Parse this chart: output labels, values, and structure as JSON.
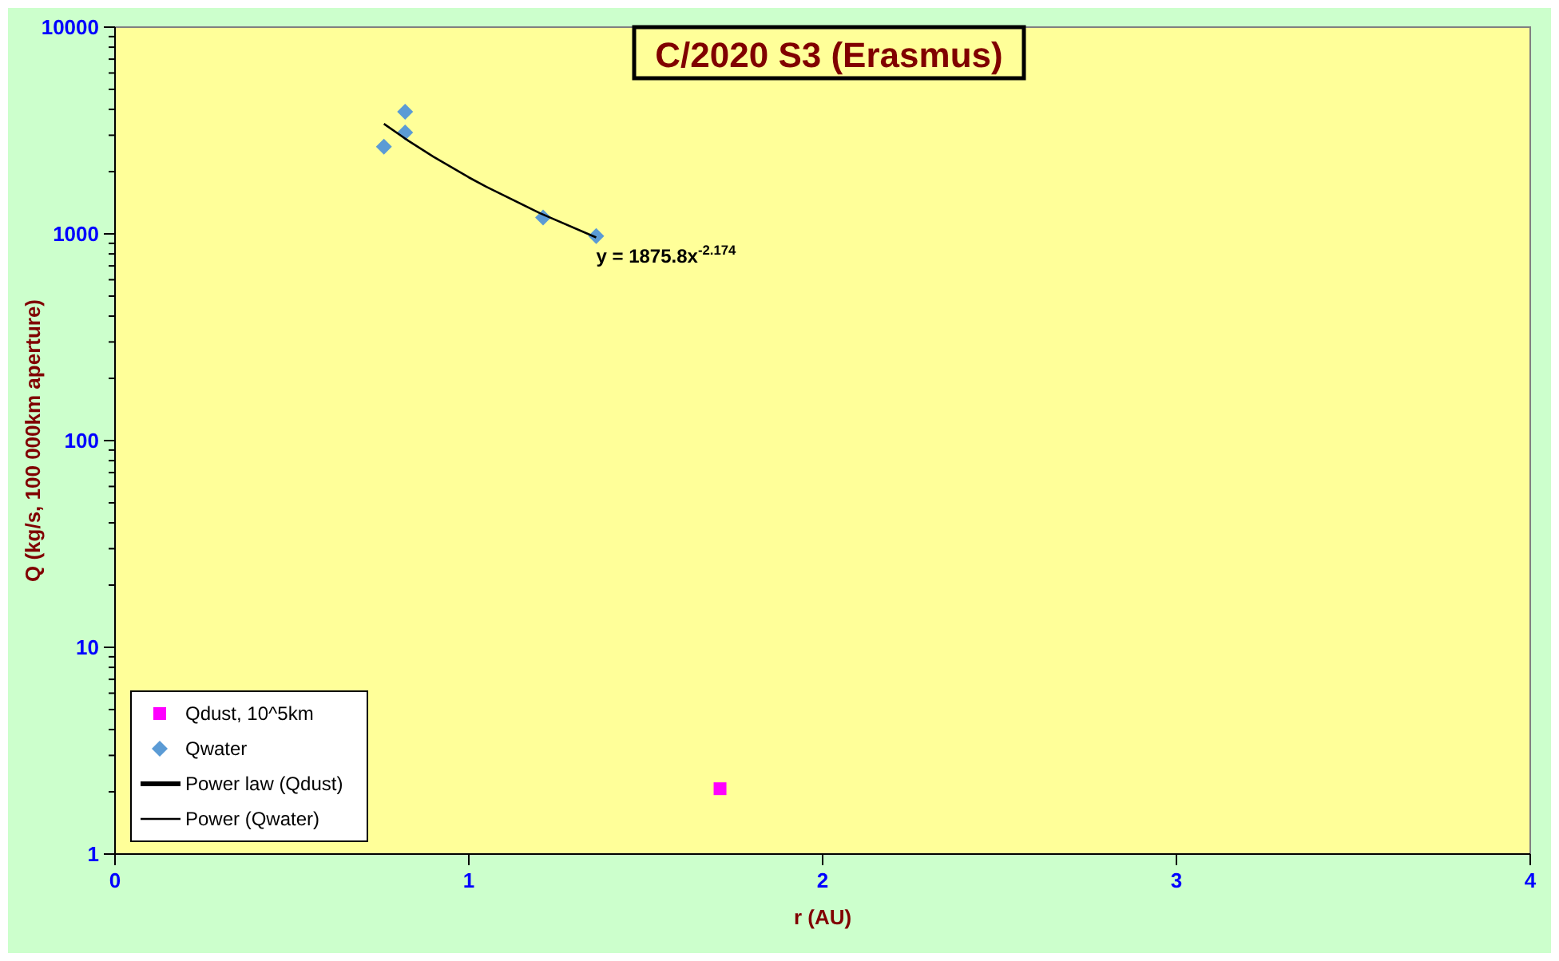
{
  "chart_data": {
    "type": "scatter",
    "title": "C/2020 S3 (Erasmus)",
    "xlabel": "r (AU)",
    "ylabel": "Q (kg/s, 100 000km aperture)",
    "log": "y",
    "xlim": [
      0,
      4
    ],
    "xticks": [
      0,
      1,
      2,
      3,
      4
    ],
    "ylim": [
      1,
      10000
    ],
    "yticks": [
      1,
      10,
      100,
      1000,
      10000
    ],
    "grid": false,
    "legend": "bottom left",
    "series": [
      {
        "name": "Qdust, 10^5km",
        "marker": "square",
        "color": "#ff00ff",
        "x": [
          1.71
        ],
        "values": [
          2.07
        ]
      },
      {
        "name": "Qwater",
        "marker": "diamond",
        "color": "#5b9bd5",
        "x": [
          0.76,
          0.82,
          0.82,
          1.21,
          1.36
        ],
        "values": [
          2640,
          3900,
          3090,
          1200,
          975
        ]
      },
      {
        "name": "Power law (Qdust)",
        "type": "line",
        "color": "#000000"
      },
      {
        "name": "Power (Qwater)",
        "type": "line",
        "color": "#000000",
        "x": [
          0.76,
          0.83,
          0.9,
          1.0,
          1.05,
          1.2,
          1.36
        ],
        "values": [
          3406,
          2813,
          2359,
          1876,
          1687,
          1262,
          961
        ]
      }
    ],
    "annotations": [
      {
        "text": "y = 1875.8x$^{-2.174}$",
        "x": 1.36,
        "y": 961
      }
    ]
  }
}
